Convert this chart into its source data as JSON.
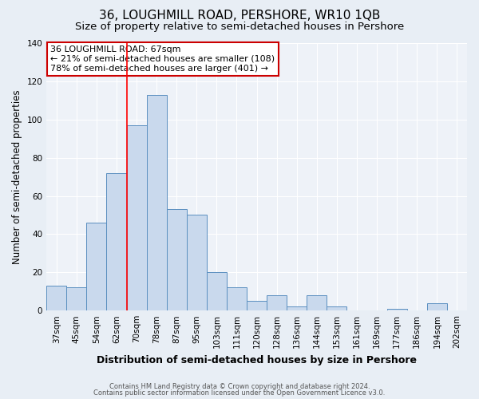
{
  "title": "36, LOUGHMILL ROAD, PERSHORE, WR10 1QB",
  "subtitle": "Size of property relative to semi-detached houses in Pershore",
  "xlabel": "Distribution of semi-detached houses by size in Pershore",
  "ylabel": "Number of semi-detached properties",
  "categories": [
    "37sqm",
    "45sqm",
    "54sqm",
    "62sqm",
    "70sqm",
    "78sqm",
    "87sqm",
    "95sqm",
    "103sqm",
    "111sqm",
    "120sqm",
    "128sqm",
    "136sqm",
    "144sqm",
    "153sqm",
    "161sqm",
    "169sqm",
    "177sqm",
    "186sqm",
    "194sqm",
    "202sqm"
  ],
  "values": [
    13,
    12,
    46,
    72,
    97,
    113,
    53,
    50,
    20,
    12,
    5,
    8,
    2,
    8,
    2,
    0,
    0,
    1,
    0,
    4,
    0
  ],
  "bar_color": "#c9d9ed",
  "bar_edge_color": "#5a8fc0",
  "red_line_x": 4,
  "annotation_title": "36 LOUGHMILL ROAD: 67sqm",
  "annotation_line1": "← 21% of semi-detached houses are smaller (108)",
  "annotation_line2": "78% of semi-detached houses are larger (401) →",
  "annotation_box_color": "#ffffff",
  "annotation_box_edgecolor": "#cc0000",
  "ylim": [
    0,
    140
  ],
  "yticks": [
    0,
    20,
    40,
    60,
    80,
    100,
    120,
    140
  ],
  "footer1": "Contains HM Land Registry data © Crown copyright and database right 2024.",
  "footer2": "Contains public sector information licensed under the Open Government Licence v3.0.",
  "background_color": "#e8eef5",
  "plot_background_color": "#eef2f8",
  "grid_color": "#ffffff",
  "title_fontsize": 11,
  "subtitle_fontsize": 9.5,
  "xlabel_fontsize": 9,
  "ylabel_fontsize": 8.5,
  "tick_fontsize": 7.5,
  "annotation_fontsize": 8,
  "footer_fontsize": 6,
  "bar_width": 1.0
}
